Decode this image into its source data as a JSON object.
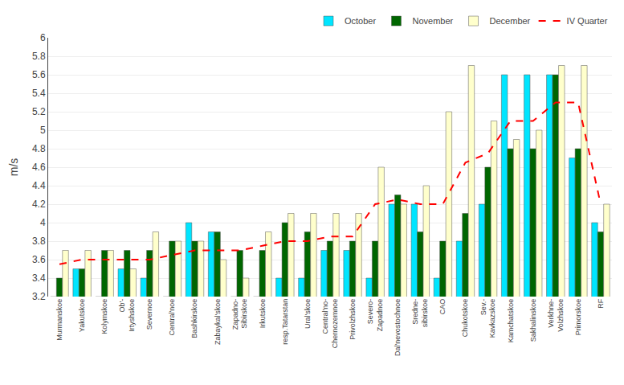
{
  "chart_data": {
    "type": "bar",
    "categories": [
      "Murmanskoe",
      "Yakutskoe",
      "Kolymskoe",
      "Ob'-\nIrtyshskoe",
      "Severnoe",
      "Central'noe",
      "Bashkirskoe",
      "Zabaykal'skoe",
      "Zapadno-\nSibirskoe",
      "Irkutskoe",
      "resp.Tatarstan",
      "Ural'skoe",
      "Central'no-\nChernozemnoe",
      "Privolzhskoe",
      "Severo-\nZapadnoe",
      "Dal'nevostochnoe",
      "Sredne-\nsibirskoe",
      "CAO",
      "Chukotskoe",
      "Sev.-\nKavkazskoe",
      "Kamchatskoe",
      "Sakhalinskoe",
      "Verkhne-\nVolzhskoe",
      "Primorskoe",
      "RF"
    ],
    "series": [
      {
        "name": "October",
        "type": "bar",
        "color": "#00E5FF",
        "values": [
          3.2,
          3.5,
          3.2,
          3.5,
          3.4,
          3.2,
          4.0,
          3.9,
          3.2,
          3.2,
          3.4,
          3.4,
          3.7,
          3.7,
          3.4,
          4.2,
          4.2,
          3.4,
          3.8,
          4.2,
          5.6,
          5.6,
          5.6,
          4.7,
          4.0
        ]
      },
      {
        "name": "November",
        "type": "bar",
        "color": "#006600",
        "values": [
          3.4,
          3.5,
          3.7,
          3.7,
          3.7,
          3.8,
          3.8,
          3.9,
          3.7,
          3.7,
          4.0,
          3.9,
          3.8,
          3.8,
          3.8,
          4.3,
          3.9,
          3.8,
          4.1,
          4.6,
          4.8,
          4.8,
          5.6,
          4.8,
          3.9
        ]
      },
      {
        "name": "December",
        "type": "bar",
        "color": "#FFFFCC",
        "values": [
          3.7,
          3.7,
          3.7,
          3.5,
          3.9,
          3.8,
          3.8,
          3.6,
          3.4,
          3.9,
          4.1,
          4.1,
          4.1,
          4.1,
          4.6,
          4.2,
          4.4,
          5.2,
          5.7,
          5.1,
          4.9,
          5.0,
          5.7,
          5.7,
          4.2
        ]
      },
      {
        "name": "IV Quarter",
        "type": "line",
        "color": "#FF0000",
        "line_style": "dashed",
        "values": [
          3.55,
          3.6,
          3.6,
          3.6,
          3.6,
          3.65,
          3.7,
          3.7,
          3.7,
          3.75,
          3.8,
          3.8,
          3.85,
          3.85,
          4.2,
          4.25,
          4.2,
          4.2,
          4.65,
          4.75,
          5.1,
          5.1,
          5.3,
          5.3,
          4.2
        ]
      }
    ],
    "ylabel": "m/s",
    "ylim": [
      3.2,
      6.0
    ],
    "yticks": [
      3.2,
      3.4,
      3.6,
      3.8,
      4.0,
      4.2,
      4.4,
      4.6,
      4.8,
      5.0,
      5.2,
      5.4,
      5.6,
      5.8,
      6.0
    ],
    "grid": true,
    "legend": "upper right"
  }
}
